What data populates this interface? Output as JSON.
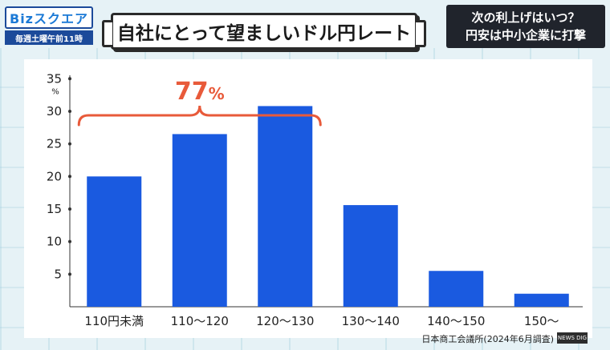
{
  "branding": {
    "logo_text": "Bizスクエア",
    "schedule": "毎週土曜午前11時"
  },
  "title": "自社にとって望ましいドル円レート",
  "side_caption": {
    "line1": "次の利上げはいつ？",
    "line2": "円安は中小企業に打撃"
  },
  "source": "日本商工会議所(2024年6月調査)",
  "news_badge": "NEWS DIG",
  "colors": {
    "bar": "#1a5ae0",
    "annotation": "#e85a3a",
    "axis": "#333333"
  },
  "chart_data": {
    "type": "bar",
    "categories": [
      "110円未満",
      "110〜120",
      "120〜130",
      "130〜140",
      "140〜150",
      "150〜"
    ],
    "values": [
      20,
      26.5,
      30.8,
      15.6,
      5.5,
      2
    ],
    "yticks": [
      5,
      10,
      15,
      20,
      25,
      30,
      35
    ],
    "ylim": [
      0,
      37
    ],
    "yunit": "%",
    "grid": false,
    "annotation": {
      "text": "77",
      "unit": "%",
      "span_categories": [
        "110円未満",
        "120〜130"
      ]
    }
  }
}
